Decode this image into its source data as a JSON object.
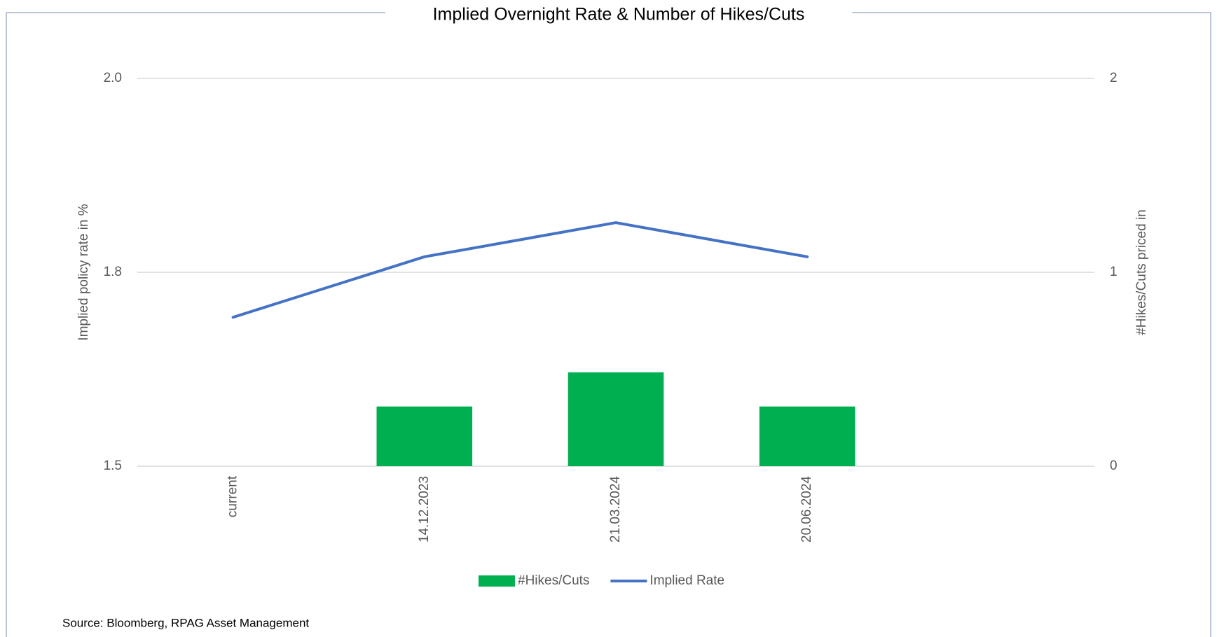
{
  "chart_data": {
    "type": "bar_line",
    "title": "Implied Overnight Rate & Number of Hikes/Cuts",
    "y_label": "Implied policy rate in %",
    "y2_label": "#Hikes/Cuts priced in",
    "source": "Source: Bloomberg, RPAG Asset Management",
    "categories": [
      "current",
      "14.12.2023",
      "21.03.2024",
      "20.06.2024",
      null
    ],
    "series": [
      {
        "name": "#Hikes/Cuts",
        "type": "bar",
        "axis": "y2",
        "color": "#00b050",
        "values": [
          0,
          0.308,
          0.484,
          0.308,
          null
        ]
      },
      {
        "name": "Implied Rate",
        "type": "line",
        "axis": "y",
        "color": "#4472c4",
        "values": [
          1.692,
          1.77,
          1.814,
          1.77,
          null
        ]
      }
    ],
    "ylim": [
      1.5,
      2.0
    ],
    "yticks": [
      1.5,
      {
        "value": 1.75,
        "label": "1.8"
      },
      {
        "value": 2.0,
        "label": "2.0"
      }
    ],
    "y2lim": [
      0,
      2
    ],
    "y2ticks": [
      0,
      1,
      2
    ],
    "grid": true,
    "legend": "bottom"
  }
}
